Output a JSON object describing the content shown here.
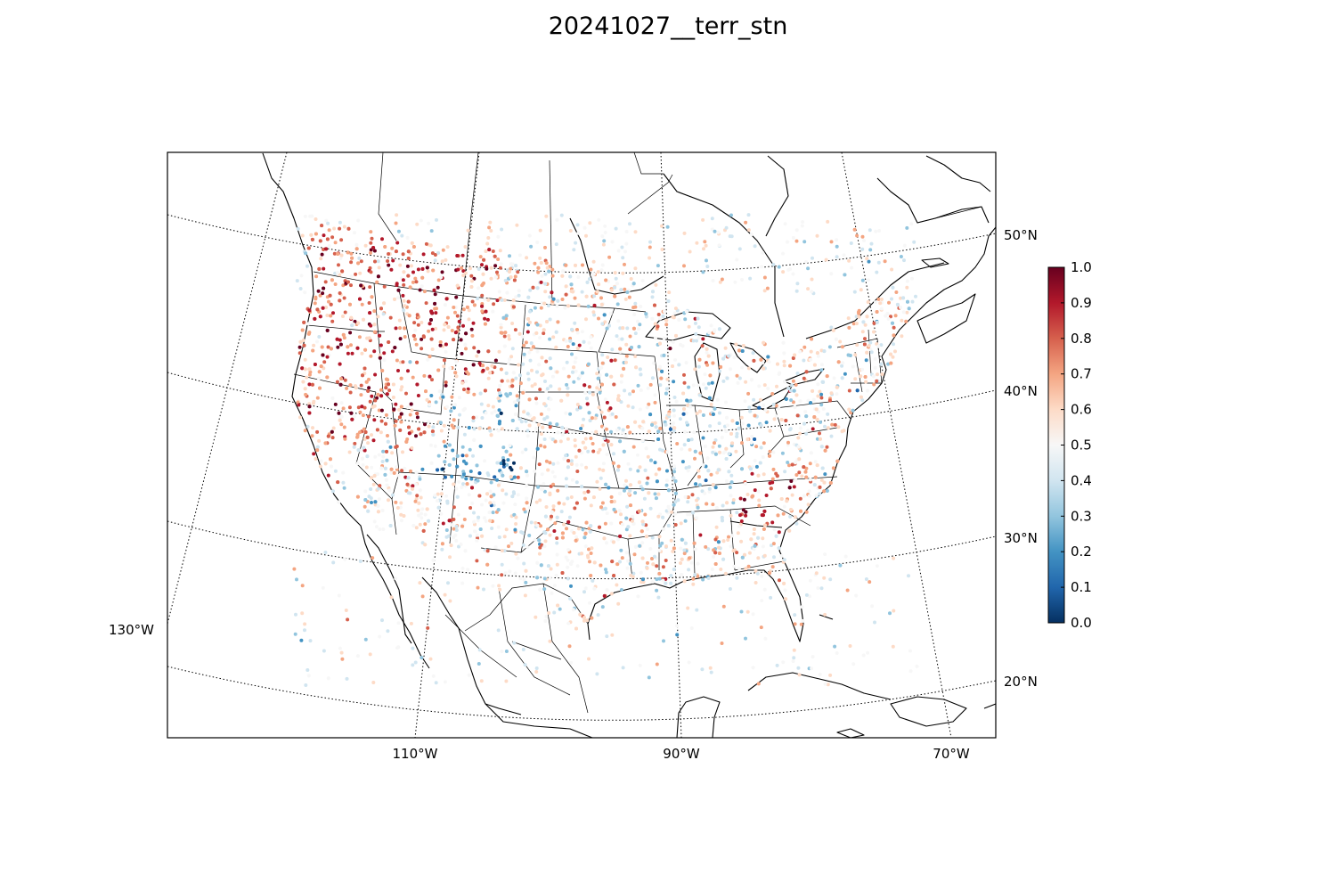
{
  "title": "20241027__terr_stn",
  "map": {
    "lat_labels": [
      {
        "text": "50°N"
      },
      {
        "text": "40°N"
      },
      {
        "text": "30°N"
      },
      {
        "text": "20°N"
      }
    ],
    "lon_labels": [
      {
        "text": "130°W"
      },
      {
        "text": "110°W"
      },
      {
        "text": "90°W"
      },
      {
        "text": "70°W"
      }
    ]
  },
  "colorbar": {
    "min": 0.0,
    "max": 1.0,
    "colormap": "RdBu_r",
    "ticks": [
      "0.0",
      "0.1",
      "0.2",
      "0.3",
      "0.4",
      "0.5",
      "0.6",
      "0.7",
      "0.8",
      "0.9",
      "1.0"
    ],
    "colors": [
      "#053061",
      "#2166ac",
      "#4393c3",
      "#92c5de",
      "#d1e5f0",
      "#f7f7f7",
      "#fddbc7",
      "#f4a582",
      "#d6604d",
      "#b2182b",
      "#67001f"
    ]
  }
}
